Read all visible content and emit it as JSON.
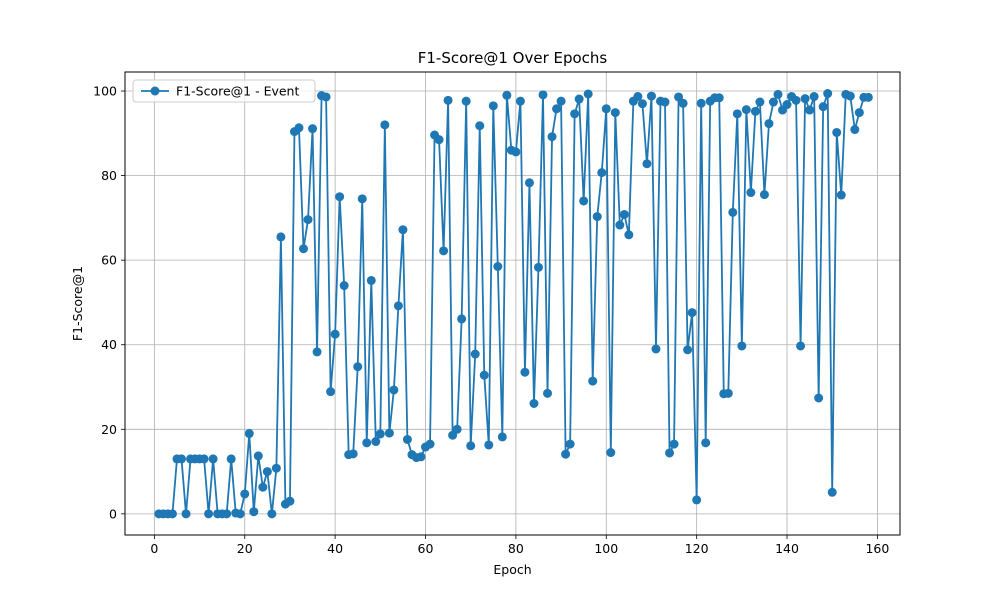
{
  "chart_data": {
    "type": "line",
    "title": "F1-Score@1 Over Epochs",
    "xlabel": "Epoch",
    "ylabel": "F1-Score@1",
    "xlim": [
      -6.5,
      165
    ],
    "ylim": [
      -5,
      104.5
    ],
    "xticks": [
      0,
      20,
      40,
      60,
      80,
      100,
      120,
      140,
      160
    ],
    "yticks": [
      0,
      20,
      40,
      60,
      80,
      100
    ],
    "grid": true,
    "legend_position": "top-left",
    "colors": {
      "series": "#1f77b4",
      "grid": "#b0b0b0"
    },
    "series": [
      {
        "name": "F1-Score@1 - Event",
        "marker": "circle",
        "x": [
          1,
          2,
          3,
          4,
          5,
          6,
          7,
          8,
          9,
          10,
          11,
          12,
          13,
          14,
          15,
          16,
          17,
          18,
          19,
          20,
          21,
          22,
          23,
          24,
          25,
          26,
          27,
          28,
          29,
          30,
          31,
          32,
          33,
          34,
          35,
          36,
          37,
          38,
          39,
          40,
          41,
          42,
          43,
          44,
          45,
          46,
          47,
          48,
          49,
          50,
          51,
          52,
          53,
          54,
          55,
          56,
          57,
          58,
          59,
          60,
          61,
          62,
          63,
          64,
          65,
          66,
          67,
          68,
          69,
          70,
          71,
          72,
          73,
          74,
          75,
          76,
          77,
          78,
          79,
          80,
          81,
          82,
          83,
          84,
          85,
          86,
          87,
          88,
          89,
          90,
          91,
          92,
          93,
          94,
          95,
          96,
          97,
          98,
          99,
          100,
          101,
          102,
          103,
          104,
          105,
          106,
          107,
          108,
          109,
          110,
          111,
          112,
          113,
          114,
          115,
          116,
          117,
          118,
          119,
          120,
          121,
          122,
          123,
          124,
          125,
          126,
          127,
          128,
          129,
          130,
          131,
          132,
          133,
          134,
          135,
          136,
          137,
          138,
          139,
          140,
          141,
          142,
          143,
          144,
          145,
          146,
          147,
          148,
          149,
          150,
          151,
          152,
          153,
          154,
          155,
          156,
          157,
          158
        ],
        "values": [
          0,
          0,
          0,
          0,
          13,
          13,
          0,
          13,
          13,
          13,
          13,
          0,
          13,
          0,
          0,
          0,
          13,
          0.2,
          0,
          4.7,
          19,
          0.5,
          13.7,
          6.3,
          10,
          0,
          10.8,
          65.5,
          2.3,
          3,
          90.4,
          91.3,
          62.7,
          69.6,
          91.1,
          38.3,
          98.9,
          98.6,
          28.9,
          42.5,
          75,
          54,
          14,
          14.2,
          34.8,
          74.5,
          16.8,
          55.2,
          17.1,
          18.9,
          92,
          19.1,
          29.3,
          49.2,
          67.2,
          17.6,
          14,
          13.3,
          13.5,
          15.8,
          16.5,
          89.6,
          88.5,
          62.2,
          97.8,
          18.6,
          20,
          46.1,
          97.6,
          16.1,
          37.8,
          91.8,
          32.8,
          16.3,
          96.5,
          58.5,
          18.2,
          99,
          86,
          85.6,
          97.6,
          33.5,
          78.3,
          26.1,
          58.3,
          99.1,
          28.5,
          89.2,
          95.8,
          97.6,
          14.1,
          16.5,
          94.6,
          98.1,
          74,
          99.3,
          31.4,
          70.3,
          80.7,
          95.8,
          14.5,
          94.9,
          68.3,
          70.8,
          66,
          97.6,
          98.7,
          97,
          82.8,
          98.8,
          39,
          97.6,
          97.4,
          14.4,
          16.5,
          98.6,
          97.1,
          38.8,
          47.6,
          3.3,
          97.1,
          16.8,
          97.6,
          98.4,
          98.4,
          28.4,
          28.5,
          71.3,
          94.6,
          39.7,
          95.6,
          76,
          95.2,
          97.4,
          75.5,
          92.3,
          97.4,
          99.2,
          95.5,
          96.8,
          98.7,
          97.8,
          39.7,
          98.2,
          95.5,
          98.7,
          27.4,
          96.3,
          99.4,
          5.1,
          90.2,
          75.4,
          99.2,
          98.8,
          90.9,
          94.9,
          98.5,
          98.5
        ]
      }
    ]
  }
}
